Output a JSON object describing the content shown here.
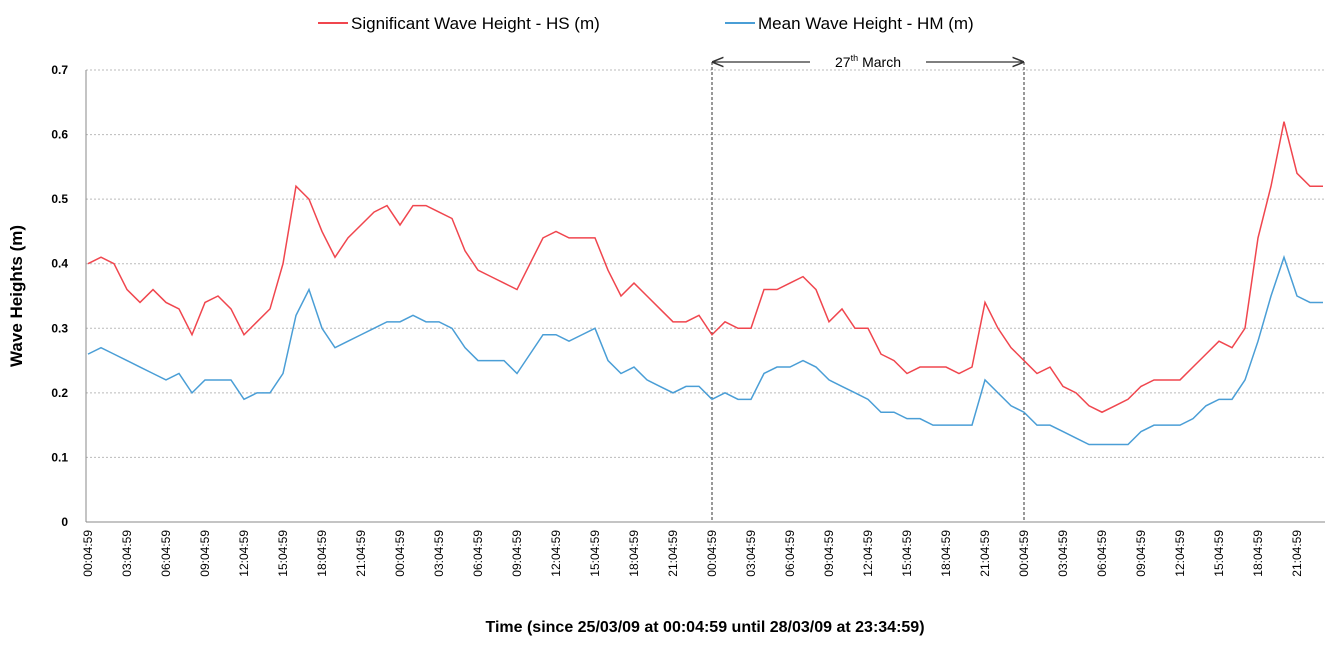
{
  "chart_data": {
    "type": "line",
    "x_label": "Time (since 25/03/09 at 00:04:59 until 28/03/09 at 23:34:59)",
    "y_label": "Wave Heights (m)",
    "annotation": {
      "day": "27",
      "suffix": "th",
      "month": "March"
    },
    "categories": [
      "00:04:59",
      null,
      null,
      "03:04:59",
      null,
      null,
      "06:04:59",
      null,
      null,
      "09:04:59",
      null,
      null,
      "12:04:59",
      null,
      null,
      "15:04:59",
      null,
      null,
      "18:04:59",
      null,
      null,
      "21:04:59",
      null,
      null,
      "00:04:59",
      null,
      null,
      "03:04:59",
      null,
      null,
      "06:04:59",
      null,
      null,
      "09:04:59",
      null,
      null,
      "12:04:59",
      null,
      null,
      "15:04:59",
      null,
      null,
      "18:04:59",
      null,
      null,
      "21:04:59",
      null,
      null,
      "00:04:59",
      null,
      null,
      "03:04:59",
      null,
      null,
      "06:04:59",
      null,
      null,
      "09:04:59",
      null,
      null,
      "12:04:59",
      null,
      null,
      "15:04:59",
      null,
      null,
      "18:04:59",
      null,
      null,
      "21:04:59",
      null,
      null,
      "00:04:59",
      null,
      null,
      "03:04:59",
      null,
      null,
      "06:04:59",
      null,
      null,
      "09:04:59",
      null,
      null,
      "12:04:59",
      null,
      null,
      "15:04:59",
      null,
      null,
      "18:04:59",
      null,
      null,
      "21:04:59",
      null,
      null
    ],
    "series": [
      {
        "name": "Significant Wave Height - HS (m)",
        "color": "#f0464e",
        "values": [
          0.4,
          0.41,
          0.4,
          0.36,
          0.34,
          0.36,
          0.34,
          0.33,
          0.29,
          0.34,
          0.35,
          0.33,
          0.29,
          0.31,
          0.33,
          0.4,
          0.52,
          0.5,
          0.45,
          0.41,
          0.44,
          0.46,
          0.48,
          0.49,
          0.46,
          0.49,
          0.49,
          0.48,
          0.47,
          0.42,
          0.39,
          0.38,
          0.37,
          0.36,
          0.4,
          0.44,
          0.45,
          0.44,
          0.44,
          0.44,
          0.39,
          0.35,
          0.37,
          0.35,
          0.33,
          0.31,
          0.31,
          0.32,
          0.29,
          0.31,
          0.3,
          0.3,
          0.36,
          0.36,
          0.37,
          0.38,
          0.36,
          0.31,
          0.33,
          0.3,
          0.3,
          0.26,
          0.25,
          0.23,
          0.24,
          0.24,
          0.24,
          0.23,
          0.24,
          0.34,
          0.3,
          0.27,
          0.25,
          0.23,
          0.24,
          0.21,
          0.2,
          0.18,
          0.17,
          0.18,
          0.19,
          0.21,
          0.22,
          0.22,
          0.22,
          0.24,
          0.26,
          0.28,
          0.27,
          0.3,
          0.44,
          0.52,
          0.62,
          0.54,
          0.52,
          0.52
        ]
      },
      {
        "name": "Mean Wave Height - HM (m)",
        "color": "#4a9ed6",
        "values": [
          0.26,
          0.27,
          0.26,
          0.25,
          0.24,
          0.23,
          0.22,
          0.23,
          0.2,
          0.22,
          0.22,
          0.22,
          0.19,
          0.2,
          0.2,
          0.23,
          0.32,
          0.36,
          0.3,
          0.27,
          0.28,
          0.29,
          0.3,
          0.31,
          0.31,
          0.32,
          0.31,
          0.31,
          0.3,
          0.27,
          0.25,
          0.25,
          0.25,
          0.23,
          0.26,
          0.29,
          0.29,
          0.28,
          0.29,
          0.3,
          0.25,
          0.23,
          0.24,
          0.22,
          0.21,
          0.2,
          0.21,
          0.21,
          0.19,
          0.2,
          0.19,
          0.19,
          0.23,
          0.24,
          0.24,
          0.25,
          0.24,
          0.22,
          0.21,
          0.2,
          0.19,
          0.17,
          0.17,
          0.16,
          0.16,
          0.15,
          0.15,
          0.15,
          0.15,
          0.22,
          0.2,
          0.18,
          0.17,
          0.15,
          0.15,
          0.14,
          0.13,
          0.12,
          0.12,
          0.12,
          0.12,
          0.14,
          0.15,
          0.15,
          0.15,
          0.16,
          0.18,
          0.19,
          0.19,
          0.22,
          0.28,
          0.35,
          0.41,
          0.35,
          0.34,
          0.34
        ]
      }
    ],
    "ylim": [
      0,
      0.7
    ],
    "yticks": [
      0,
      0.1,
      0.2,
      0.3,
      0.4,
      0.5,
      0.6,
      0.7
    ],
    "grid": true,
    "legend": "top"
  }
}
